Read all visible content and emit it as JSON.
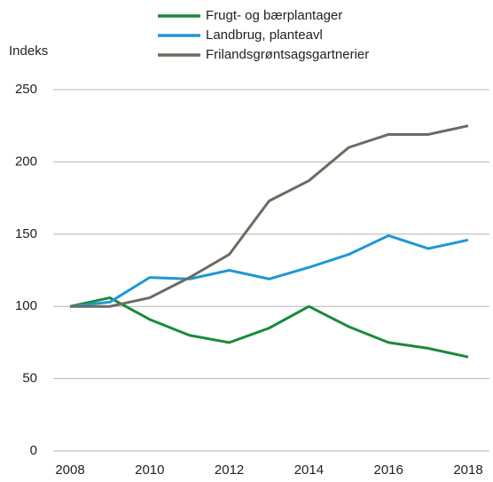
{
  "chart_data": {
    "type": "line",
    "y_label": "Indeks",
    "x": [
      2008,
      2009,
      2010,
      2011,
      2012,
      2013,
      2014,
      2015,
      2016,
      2017,
      2018
    ],
    "series": [
      {
        "name": "Frugt- og bærplantager",
        "color": "#1a8a3c",
        "values": [
          100,
          106,
          91,
          80,
          75,
          85,
          100,
          86,
          75,
          71,
          65
        ]
      },
      {
        "name": "Landbrug, planteavl",
        "color": "#1f97d4",
        "values": [
          100,
          103,
          120,
          119,
          125,
          119,
          127,
          136,
          149,
          140,
          146
        ]
      },
      {
        "name": "Frilandsgrøntsagsgartnerier",
        "color": "#6b6b62",
        "values": [
          100,
          100,
          106,
          120,
          136,
          173,
          187,
          210,
          219,
          219,
          225
        ]
      }
    ],
    "xlim": [
      2008,
      2018
    ],
    "xticks": [
      2008,
      2010,
      2012,
      2014,
      2016,
      2018
    ],
    "ylim": [
      0,
      250
    ],
    "yticks": [
      0,
      50,
      100,
      150,
      200,
      250
    ],
    "grid": true,
    "legend": "top"
  }
}
